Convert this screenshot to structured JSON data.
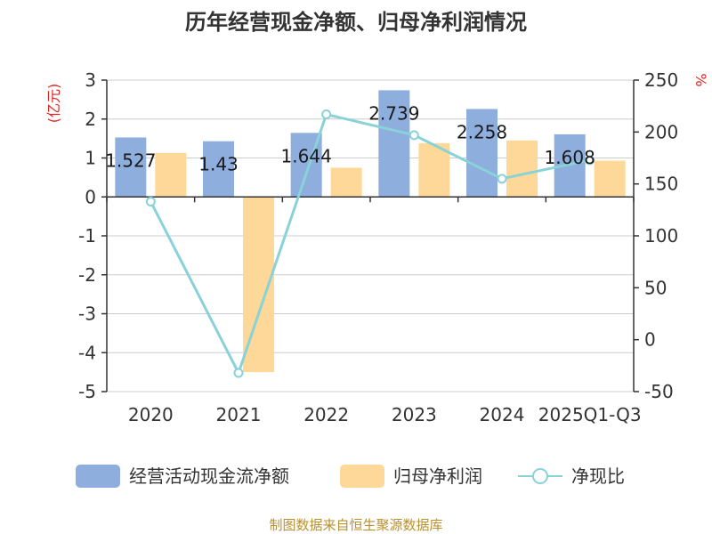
{
  "title": "历年经营现金净额、归母净利润情况",
  "source": "制图数据来自恒生聚源数据库",
  "colors": {
    "cash": "#8eaede",
    "profit": "#fdd898",
    "ratio": "#89d2d8",
    "unit": "#e0251f",
    "source": "#b8902f"
  },
  "chart_data": {
    "type": "bar",
    "title": "历年经营现金净额、归母净利润情况",
    "ylabel": "(亿元)",
    "y2label": "%",
    "categories": [
      "2020",
      "2021",
      "2022",
      "2023",
      "2024",
      "2025Q1-Q3"
    ],
    "ylim": [
      -5,
      3
    ],
    "yticks": [
      "3",
      "2",
      "1",
      "0",
      "-1",
      "-2",
      "-3",
      "-4",
      "-5"
    ],
    "ytick_values": [
      3,
      2,
      1,
      0,
      -1,
      -2,
      -3,
      -4,
      -5
    ],
    "y2lim": [
      -50,
      250
    ],
    "y2ticks": [
      "250",
      "200",
      "150",
      "100",
      "50",
      "0",
      "-50"
    ],
    "y2tick_values": [
      250,
      200,
      150,
      100,
      50,
      0,
      -50
    ],
    "series": [
      {
        "name": "经营活动现金流净额",
        "type": "bar",
        "axis": "left",
        "values": [
          1.527,
          1.43,
          1.644,
          2.739,
          2.258,
          1.608
        ],
        "labels": [
          "1.527",
          "1.43",
          "1.644",
          "2.739",
          "2.258",
          "1.608"
        ]
      },
      {
        "name": "归母净利润",
        "type": "bar",
        "axis": "left",
        "values": [
          1.13,
          -4.5,
          0.75,
          1.38,
          1.45,
          0.93
        ]
      },
      {
        "name": "净现比",
        "type": "line",
        "axis": "right",
        "values": [
          133,
          -32,
          217,
          197,
          155,
          173
        ]
      }
    ]
  }
}
